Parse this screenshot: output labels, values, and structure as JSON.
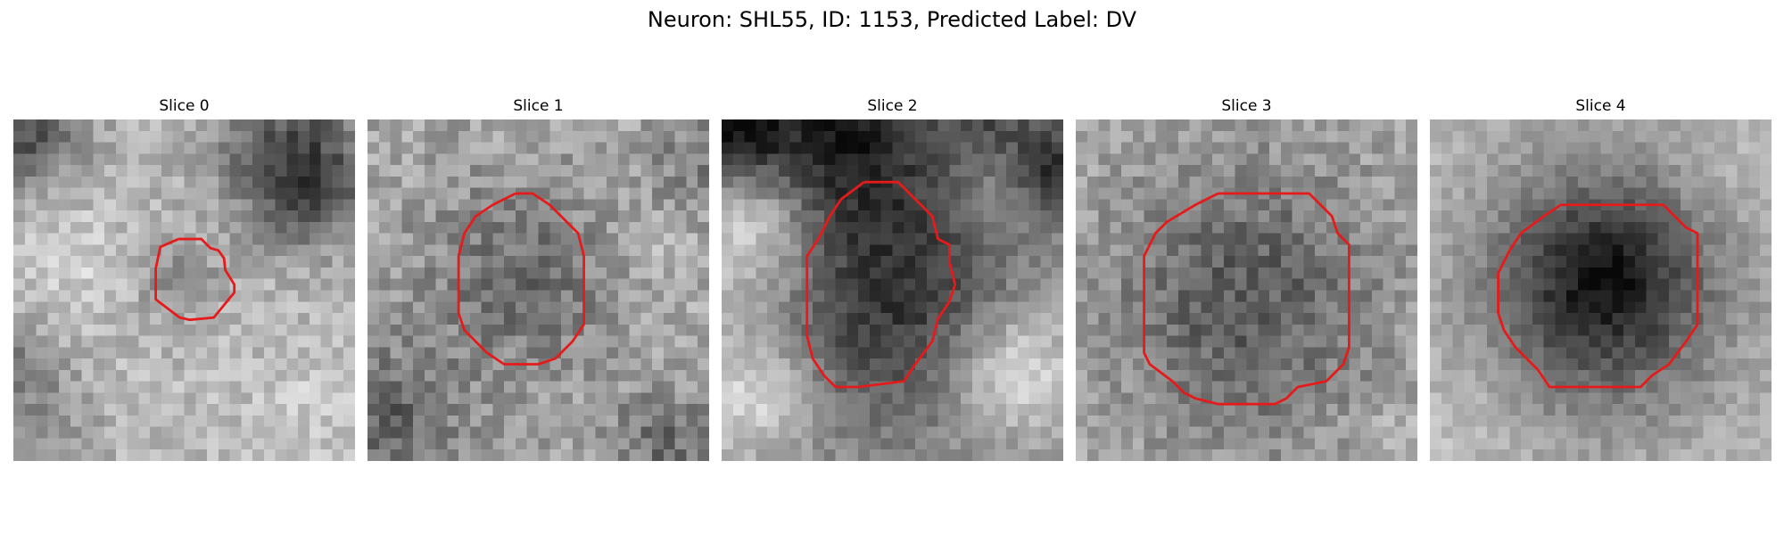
{
  "title": "Neuron: SHL55, ID: 1153, Predicted Label: DV",
  "colors": {
    "background": "#ffffff",
    "contour": "#e51b1b",
    "colormap": "gray"
  },
  "slices": [
    {
      "label": "Slice 0",
      "contour": [
        [
          14.5,
          10.5
        ],
        [
          16.5,
          10.5
        ],
        [
          17.3,
          11.3
        ],
        [
          18.0,
          11.5
        ],
        [
          18.5,
          12.2
        ],
        [
          18.6,
          13.2
        ],
        [
          19.4,
          14.5
        ],
        [
          19.4,
          15.2
        ],
        [
          17.6,
          17.4
        ],
        [
          15.5,
          17.6
        ],
        [
          14.6,
          17.4
        ],
        [
          12.5,
          15.8
        ],
        [
          12.5,
          13.1
        ],
        [
          12.9,
          11.2
        ],
        [
          14.5,
          10.5
        ]
      ],
      "shading": {
        "bg": [
          185,
          28
        ],
        "dark": [
          [
            0.6,
            0.4,
            4,
            -110
          ],
          [
            26,
            6,
            4,
            -80
          ],
          [
            24,
            2,
            5,
            -70
          ],
          [
            14.5,
            14,
            2.5,
            -45
          ],
          [
            1,
            22,
            2.5,
            -60
          ],
          [
            4,
            27,
            3,
            -30
          ]
        ],
        "light": [
          [
            5,
            12,
            3,
            25
          ],
          [
            26,
            25,
            3,
            20
          ]
        ]
      }
    },
    {
      "label": "Slice 1",
      "contour": [
        [
          13.0,
          6.5
        ],
        [
          14.5,
          6.5
        ],
        [
          16.0,
          7.5
        ],
        [
          17.5,
          9.0
        ],
        [
          18.5,
          10.0
        ],
        [
          19.0,
          12.0
        ],
        [
          19.0,
          16.0
        ],
        [
          19.0,
          18.0
        ],
        [
          18.0,
          19.5
        ],
        [
          17.0,
          20.5
        ],
        [
          16.5,
          21.0
        ],
        [
          15.0,
          21.5
        ],
        [
          12.0,
          21.5
        ],
        [
          10.5,
          20.5
        ],
        [
          9.5,
          19.5
        ],
        [
          8.5,
          18.5
        ],
        [
          8.0,
          17.0
        ],
        [
          8.0,
          12.0
        ],
        [
          8.5,
          10.0
        ],
        [
          9.5,
          8.5
        ],
        [
          11.0,
          7.5
        ],
        [
          13.0,
          6.5
        ]
      ],
      "shading": {
        "bg": [
          165,
          34
        ],
        "dark": [
          [
            13.5,
            14,
            6,
            -55
          ],
          [
            2,
            26,
            4,
            -70
          ],
          [
            26,
            28,
            3,
            -60
          ],
          [
            29,
            4,
            3,
            -40
          ]
        ],
        "light": [
          [
            26,
            12,
            3,
            20
          ]
        ]
      }
    },
    {
      "label": "Slice 2",
      "contour": [
        [
          12.5,
          5.5
        ],
        [
          15.5,
          5.5
        ],
        [
          16.5,
          6.5
        ],
        [
          17.5,
          7.5
        ],
        [
          18.5,
          8.5
        ],
        [
          19.0,
          10.5
        ],
        [
          20.0,
          11.0
        ],
        [
          20.0,
          12.5
        ],
        [
          20.5,
          14.5
        ],
        [
          20.0,
          16.0
        ],
        [
          19.0,
          17.5
        ],
        [
          18.5,
          19.5
        ],
        [
          17.0,
          21.5
        ],
        [
          16.0,
          23.0
        ],
        [
          12.0,
          23.5
        ],
        [
          10.0,
          23.5
        ],
        [
          9.0,
          22.5
        ],
        [
          8.0,
          21.0
        ],
        [
          7.5,
          19.0
        ],
        [
          7.5,
          12.0
        ],
        [
          8.5,
          10.5
        ],
        [
          9.5,
          8.5
        ],
        [
          10.5,
          7.0
        ],
        [
          12.5,
          5.5
        ]
      ],
      "shading": {
        "bg": [
          150,
          22
        ],
        "dark": [
          [
            14,
            15,
            8,
            -100
          ],
          [
            10,
            1,
            6,
            -110
          ],
          [
            24,
            1,
            3,
            -100
          ],
          [
            29,
            4,
            3,
            -110
          ],
          [
            1,
            1,
            3,
            -110
          ]
        ],
        "light": [
          [
            3,
            10,
            5,
            90
          ],
          [
            25,
            3,
            3,
            80
          ],
          [
            26,
            22,
            4,
            80
          ],
          [
            3,
            24,
            4,
            80
          ]
        ]
      }
    },
    {
      "label": "Slice 3",
      "contour": [
        [
          12.5,
          6.5
        ],
        [
          20.5,
          6.5
        ],
        [
          21.5,
          7.5
        ],
        [
          22.5,
          8.5
        ],
        [
          23.0,
          10.0
        ],
        [
          24.0,
          11.0
        ],
        [
          24.0,
          13.0
        ],
        [
          24.0,
          20.0
        ],
        [
          23.5,
          21.5
        ],
        [
          22.0,
          23.0
        ],
        [
          19.5,
          23.5
        ],
        [
          18.5,
          24.5
        ],
        [
          17.5,
          25.0
        ],
        [
          15.5,
          25.0
        ],
        [
          12.5,
          25.0
        ],
        [
          10.5,
          24.5
        ],
        [
          9.5,
          24.0
        ],
        [
          8.5,
          23.0
        ],
        [
          6.5,
          21.5
        ],
        [
          6.0,
          20.5
        ],
        [
          6.0,
          16.0
        ],
        [
          6.0,
          12.0
        ],
        [
          7.0,
          10.0
        ],
        [
          8.0,
          9.0
        ],
        [
          10.5,
          7.5
        ],
        [
          12.5,
          6.5
        ]
      ],
      "shading": {
        "bg": [
          172,
          30
        ],
        "dark": [
          [
            15,
            16,
            9,
            -80
          ]
        ],
        "light": [
          [
            27,
            27,
            2,
            20
          ]
        ]
      }
    },
    {
      "label": "Slice 4",
      "contour": [
        [
          13.0,
          7.5
        ],
        [
          20.5,
          7.5
        ],
        [
          21.5,
          8.5
        ],
        [
          22.5,
          9.5
        ],
        [
          23.5,
          10.0
        ],
        [
          23.5,
          12.0
        ],
        [
          23.5,
          18.0
        ],
        [
          22.5,
          19.5
        ],
        [
          21.0,
          21.5
        ],
        [
          19.5,
          22.5
        ],
        [
          18.5,
          23.5
        ],
        [
          14.0,
          23.5
        ],
        [
          10.5,
          23.5
        ],
        [
          9.5,
          22.0
        ],
        [
          8.5,
          21.0
        ],
        [
          7.5,
          20.0
        ],
        [
          6.5,
          18.5
        ],
        [
          6.0,
          17.0
        ],
        [
          6.0,
          13.5
        ],
        [
          6.5,
          12.5
        ],
        [
          7.0,
          11.5
        ],
        [
          8.0,
          10.0
        ],
        [
          10.0,
          8.5
        ],
        [
          11.5,
          7.5
        ],
        [
          13.0,
          7.5
        ]
      ],
      "shading": {
        "bg": [
          185,
          20
        ],
        "dark": [
          [
            15,
            15,
            8,
            -125
          ],
          [
            15,
            13,
            5,
            -30
          ],
          [
            16,
            14,
            3,
            -20
          ]
        ],
        "light": [
          [
            3,
            25,
            4,
            15
          ],
          [
            26,
            4,
            3,
            10
          ]
        ]
      }
    }
  ]
}
